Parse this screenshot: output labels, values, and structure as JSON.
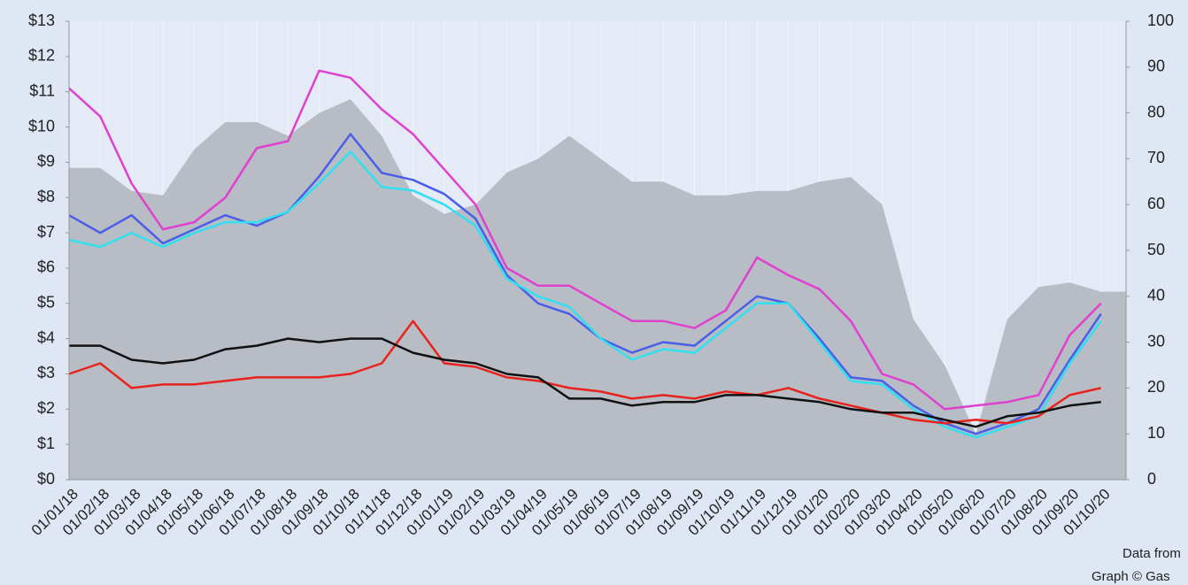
{
  "chart_data": {
    "type": "line",
    "categories": [
      "01/01/18",
      "01/02/18",
      "01/03/18",
      "01/04/18",
      "01/05/18",
      "01/06/18",
      "01/07/18",
      "01/08/18",
      "01/09/18",
      "01/10/18",
      "01/11/18",
      "01/12/18",
      "01/01/19",
      "01/02/19",
      "01/03/19",
      "01/04/19",
      "01/05/19",
      "01/06/19",
      "01/07/19",
      "01/08/19",
      "01/09/19",
      "01/10/19",
      "01/11/19",
      "01/12/19",
      "01/01/20",
      "01/02/20",
      "01/03/20",
      "01/04/20",
      "01/05/20",
      "01/06/20",
      "01/07/20",
      "01/08/20",
      "01/09/20",
      "01/10/20"
    ],
    "series": [
      {
        "kind": "area",
        "axis": "y2",
        "color": "#b8bcc4",
        "values": [
          68,
          68,
          63,
          62,
          72,
          78,
          78,
          75,
          80,
          83,
          75,
          62,
          58,
          60,
          67,
          70,
          75,
          70,
          65,
          65,
          62,
          62,
          63,
          63,
          65,
          66,
          60,
          35,
          25,
          10,
          35,
          42,
          43,
          41
        ]
      },
      {
        "color": "#e040d0",
        "values": [
          11.1,
          10.3,
          8.4,
          7.1,
          7.3,
          8.0,
          9.4,
          9.6,
          11.6,
          11.4,
          10.5,
          9.8,
          8.8,
          7.8,
          6.0,
          5.5,
          5.5,
          5.0,
          4.5,
          4.5,
          4.3,
          4.8,
          6.3,
          5.8,
          5.4,
          4.5,
          3.0,
          2.7,
          2.0,
          2.1,
          2.2,
          2.4,
          4.1,
          5.0
        ]
      },
      {
        "color": "#4a5ee8",
        "values": [
          7.5,
          7.0,
          7.5,
          6.7,
          7.1,
          7.5,
          7.2,
          7.6,
          8.6,
          9.8,
          8.7,
          8.5,
          8.1,
          7.4,
          5.8,
          5.0,
          4.7,
          4.0,
          3.6,
          3.9,
          3.8,
          4.5,
          5.2,
          5.0,
          4.0,
          2.9,
          2.8,
          2.1,
          1.6,
          1.3,
          1.6,
          2.0,
          3.4,
          4.7
        ]
      },
      {
        "color": "#30e0f0",
        "values": [
          6.8,
          6.6,
          7.0,
          6.6,
          7.0,
          7.3,
          7.3,
          7.6,
          8.4,
          9.3,
          8.3,
          8.2,
          7.8,
          7.2,
          5.7,
          5.2,
          4.9,
          4.0,
          3.4,
          3.7,
          3.6,
          4.3,
          5.0,
          5.0,
          3.9,
          2.8,
          2.7,
          2.0,
          1.5,
          1.2,
          1.5,
          1.8,
          3.3,
          4.5
        ]
      },
      {
        "color": "#e8231e",
        "values": [
          3.0,
          3.3,
          2.6,
          2.7,
          2.7,
          2.8,
          2.9,
          2.9,
          2.9,
          3.0,
          3.3,
          4.5,
          3.3,
          3.2,
          2.9,
          2.8,
          2.6,
          2.5,
          2.3,
          2.4,
          2.3,
          2.5,
          2.4,
          2.6,
          2.3,
          2.1,
          1.9,
          1.7,
          1.6,
          1.7,
          1.6,
          1.8,
          2.4,
          2.6
        ]
      },
      {
        "color": "#111111",
        "values": [
          3.8,
          3.8,
          3.4,
          3.3,
          3.4,
          3.7,
          3.8,
          4.0,
          3.9,
          4.0,
          4.0,
          3.6,
          3.4,
          3.3,
          3.0,
          2.9,
          2.3,
          2.3,
          2.1,
          2.2,
          2.2,
          2.4,
          2.4,
          2.3,
          2.2,
          2.0,
          1.9,
          1.9,
          1.7,
          1.5,
          1.8,
          1.9,
          2.1,
          2.2
        ]
      }
    ],
    "ylim": [
      0,
      13
    ],
    "yticks": [
      {
        "value": 0,
        "label": "$0"
      },
      {
        "value": 1,
        "label": "$1"
      },
      {
        "value": 2,
        "label": "$2"
      },
      {
        "value": 3,
        "label": "$3"
      },
      {
        "value": 4,
        "label": "$4"
      },
      {
        "value": 5,
        "label": "$5"
      },
      {
        "value": 6,
        "label": "$6"
      },
      {
        "value": 7,
        "label": "$7"
      },
      {
        "value": 8,
        "label": "$8"
      },
      {
        "value": 9,
        "label": "$9"
      },
      {
        "value": 10,
        "label": "$10"
      },
      {
        "value": 11,
        "label": "$11"
      },
      {
        "value": 12,
        "label": "$12"
      },
      {
        "value": 13,
        "label": "$13"
      }
    ],
    "y2lim": [
      0,
      100
    ],
    "y2ticks": [
      0,
      10,
      20,
      30,
      40,
      50,
      60,
      70,
      80,
      90,
      100
    ],
    "notes": [
      "Data from",
      "Graph © Gas"
    ]
  }
}
